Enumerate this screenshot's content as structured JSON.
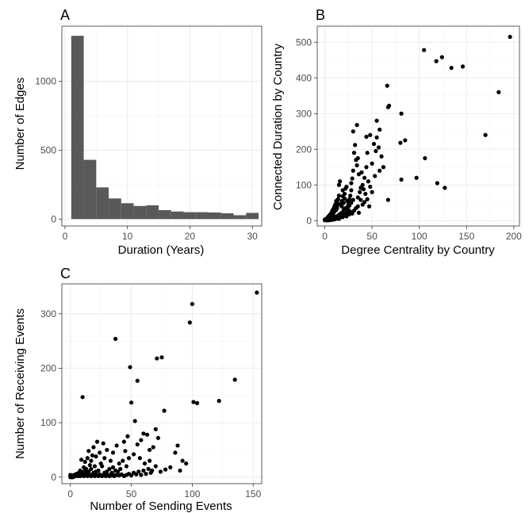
{
  "chart_data": [
    {
      "panel": "A",
      "type": "bar",
      "xlabel": "Duration (Years)",
      "ylabel": "Number of Edges",
      "xlim": [
        -0.5,
        31.5
      ],
      "ylim": [
        -50,
        1400
      ],
      "xticks": [
        0,
        10,
        20,
        30
      ],
      "yticks": [
        0,
        500,
        1000
      ],
      "grid": true,
      "bins": [
        {
          "x0": 1,
          "x1": 3,
          "count": 1330
        },
        {
          "x0": 3,
          "x1": 5,
          "count": 430
        },
        {
          "x0": 5,
          "x1": 7,
          "count": 230
        },
        {
          "x0": 7,
          "x1": 9,
          "count": 150
        },
        {
          "x0": 9,
          "x1": 11,
          "count": 115
        },
        {
          "x0": 11,
          "x1": 13,
          "count": 95
        },
        {
          "x0": 13,
          "x1": 15,
          "count": 100
        },
        {
          "x0": 15,
          "x1": 17,
          "count": 65
        },
        {
          "x0": 17,
          "x1": 19,
          "count": 55
        },
        {
          "x0": 19,
          "x1": 21,
          "count": 50
        },
        {
          "x0": 21,
          "x1": 23,
          "count": 50
        },
        {
          "x0": 23,
          "x1": 25,
          "count": 48
        },
        {
          "x0": 25,
          "x1": 27,
          "count": 42
        },
        {
          "x0": 27,
          "x1": 29,
          "count": 28
        },
        {
          "x0": 29,
          "x1": 31,
          "count": 45
        }
      ]
    },
    {
      "panel": "B",
      "type": "scatter",
      "xlabel": "Degree Centrality by Country",
      "ylabel": "Connected Duration by Country",
      "xlim": [
        -8,
        206
      ],
      "ylim": [
        -15,
        545
      ],
      "xticks": [
        0,
        50,
        100,
        150,
        200
      ],
      "yticks": [
        0,
        100,
        200,
        300,
        400,
        500
      ],
      "grid": true,
      "points": [
        [
          196,
          515
        ],
        [
          105,
          478
        ],
        [
          118,
          447
        ],
        [
          124,
          458
        ],
        [
          134,
          428
        ],
        [
          146,
          432
        ],
        [
          184,
          360
        ],
        [
          66,
          378
        ],
        [
          68,
          322
        ],
        [
          67,
          318
        ],
        [
          81,
          300
        ],
        [
          85,
          225
        ],
        [
          80,
          218
        ],
        [
          170,
          240
        ],
        [
          106,
          175
        ],
        [
          97,
          120
        ],
        [
          81,
          115
        ],
        [
          119,
          105
        ],
        [
          127,
          92
        ],
        [
          67,
          58
        ],
        [
          55,
          280
        ],
        [
          58,
          255
        ],
        [
          55,
          233
        ],
        [
          57,
          205
        ],
        [
          54,
          195
        ],
        [
          60,
          180
        ],
        [
          62,
          150
        ],
        [
          52,
          215
        ],
        [
          48,
          240
        ],
        [
          44,
          235
        ],
        [
          45,
          190
        ],
        [
          44,
          150
        ],
        [
          42,
          120
        ],
        [
          40,
          100
        ],
        [
          38,
          92
        ],
        [
          37,
          80
        ],
        [
          36,
          130
        ],
        [
          34,
          155
        ],
        [
          33,
          170
        ],
        [
          32,
          212
        ],
        [
          34,
          268
        ],
        [
          30,
          250
        ],
        [
          30,
          140
        ],
        [
          29,
          118
        ],
        [
          28,
          105
        ],
        [
          28,
          85
        ],
        [
          27,
          70
        ],
        [
          26,
          60
        ],
        [
          25,
          45
        ],
        [
          24,
          55
        ],
        [
          23,
          95
        ],
        [
          22,
          90
        ],
        [
          21,
          75
        ],
        [
          21,
          62
        ],
        [
          20,
          50
        ],
        [
          19,
          85
        ],
        [
          19,
          68
        ],
        [
          18,
          55
        ],
        [
          18,
          40
        ],
        [
          17,
          45
        ],
        [
          16,
          110
        ],
        [
          15,
          100
        ],
        [
          15,
          70
        ],
        [
          14,
          60
        ],
        [
          14,
          48
        ],
        [
          13,
          40
        ],
        [
          13,
          35
        ],
        [
          12,
          55
        ],
        [
          12,
          30
        ],
        [
          11,
          45
        ],
        [
          11,
          28
        ],
        [
          10,
          38
        ],
        [
          10,
          25
        ],
        [
          9,
          32
        ],
        [
          9,
          20
        ],
        [
          8,
          28
        ],
        [
          8,
          15
        ],
        [
          7,
          22
        ],
        [
          7,
          12
        ],
        [
          6,
          18
        ],
        [
          6,
          10
        ],
        [
          5,
          15
        ],
        [
          5,
          8
        ],
        [
          4,
          12
        ],
        [
          4,
          6
        ],
        [
          3,
          9
        ],
        [
          3,
          5
        ],
        [
          2,
          6
        ],
        [
          2,
          3
        ],
        [
          1,
          4
        ],
        [
          1,
          2
        ],
        [
          0,
          1
        ],
        [
          0,
          3
        ],
        [
          2,
          1
        ],
        [
          3,
          2
        ],
        [
          4,
          3
        ],
        [
          5,
          4
        ],
        [
          6,
          5
        ],
        [
          7,
          6
        ],
        [
          8,
          7
        ],
        [
          9,
          8
        ],
        [
          10,
          9
        ],
        [
          11,
          10
        ],
        [
          12,
          11
        ],
        [
          13,
          12
        ],
        [
          14,
          14
        ],
        [
          15,
          16
        ],
        [
          16,
          18
        ],
        [
          17,
          20
        ],
        [
          18,
          22
        ],
        [
          20,
          30
        ],
        [
          22,
          35
        ],
        [
          24,
          38
        ],
        [
          26,
          42
        ],
        [
          28,
          50
        ],
        [
          30,
          58
        ],
        [
          35,
          65
        ],
        [
          38,
          58
        ],
        [
          40,
          45
        ],
        [
          42,
          52
        ],
        [
          45,
          60
        ],
        [
          47,
          40
        ],
        [
          50,
          80
        ],
        [
          25,
          30
        ],
        [
          27,
          25
        ],
        [
          29,
          20
        ],
        [
          31,
          28
        ],
        [
          33,
          35
        ],
        [
          35,
          40
        ],
        [
          36,
          22
        ],
        [
          20,
          15
        ],
        [
          22,
          20
        ],
        [
          23,
          12
        ],
        [
          24,
          25
        ],
        [
          26,
          18
        ],
        [
          19,
          10
        ],
        [
          17,
          12
        ],
        [
          16,
          8
        ],
        [
          15,
          5
        ],
        [
          13,
          6
        ],
        [
          12,
          8
        ],
        [
          11,
          4
        ],
        [
          10,
          6
        ],
        [
          9,
          3
        ],
        [
          8,
          5
        ],
        [
          7,
          2
        ],
        [
          6,
          4
        ],
        [
          5,
          2
        ],
        [
          4,
          1
        ],
        [
          3,
          1
        ],
        [
          41,
          88
        ],
        [
          43,
          75
        ],
        [
          46,
          110
        ],
        [
          39,
          135
        ],
        [
          31,
          190
        ],
        [
          35,
          175
        ],
        [
          50,
          160
        ],
        [
          53,
          125
        ],
        [
          58,
          140
        ],
        [
          48,
          95
        ]
      ]
    },
    {
      "panel": "C",
      "type": "scatter",
      "xlabel": "Number of Sending Events",
      "ylabel": "Number of Receiving Events",
      "xlim": [
        -7,
        157
      ],
      "ylim": [
        -12,
        355
      ],
      "xticks": [
        0,
        50,
        100,
        150
      ],
      "yticks": [
        0,
        100,
        200,
        300
      ],
      "grid": true,
      "points": [
        [
          153,
          339
        ],
        [
          100,
          318
        ],
        [
          98,
          284
        ],
        [
          37,
          254
        ],
        [
          71,
          218
        ],
        [
          75,
          220
        ],
        [
          49,
          202
        ],
        [
          55,
          177
        ],
        [
          10,
          147
        ],
        [
          135,
          179
        ],
        [
          101,
          138
        ],
        [
          104,
          136
        ],
        [
          122,
          140
        ],
        [
          77,
          122
        ],
        [
          50,
          137
        ],
        [
          53,
          103
        ],
        [
          47,
          75
        ],
        [
          60,
          80
        ],
        [
          63,
          78
        ],
        [
          70,
          88
        ],
        [
          72,
          72
        ],
        [
          88,
          58
        ],
        [
          86,
          45
        ],
        [
          95,
          25
        ],
        [
          68,
          55
        ],
        [
          65,
          50
        ],
        [
          58,
          68
        ],
        [
          55,
          60
        ],
        [
          52,
          42
        ],
        [
          48,
          35
        ],
        [
          45,
          48
        ],
        [
          43,
          30
        ],
        [
          40,
          25
        ],
        [
          38,
          58
        ],
        [
          35,
          45
        ],
        [
          33,
          30
        ],
        [
          30,
          50
        ],
        [
          28,
          35
        ],
        [
          27,
          62
        ],
        [
          25,
          25
        ],
        [
          24,
          45
        ],
        [
          22,
          65
        ],
        [
          21,
          38
        ],
        [
          20,
          20
        ],
        [
          19,
          55
        ],
        [
          18,
          40
        ],
        [
          17,
          30
        ],
        [
          16,
          22
        ],
        [
          15,
          48
        ],
        [
          14,
          35
        ],
        [
          13,
          15
        ],
        [
          12,
          28
        ],
        [
          11,
          18
        ],
        [
          10,
          8
        ],
        [
          9,
          32
        ],
        [
          8,
          12
        ],
        [
          7,
          6
        ],
        [
          6,
          5
        ],
        [
          5,
          3
        ],
        [
          4,
          2
        ],
        [
          3,
          1
        ],
        [
          2,
          0
        ],
        [
          1,
          1
        ],
        [
          0,
          0
        ],
        [
          2,
          2
        ],
        [
          3,
          3
        ],
        [
          4,
          4
        ],
        [
          5,
          5
        ],
        [
          6,
          2
        ],
        [
          7,
          3
        ],
        [
          8,
          2
        ],
        [
          9,
          4
        ],
        [
          10,
          3
        ],
        [
          11,
          2
        ],
        [
          12,
          5
        ],
        [
          13,
          3
        ],
        [
          14,
          2
        ],
        [
          15,
          4
        ],
        [
          16,
          3
        ],
        [
          17,
          2
        ],
        [
          18,
          5
        ],
        [
          19,
          3
        ],
        [
          20,
          2
        ],
        [
          21,
          4
        ],
        [
          22,
          3
        ],
        [
          23,
          2
        ],
        [
          24,
          5
        ],
        [
          25,
          3
        ],
        [
          26,
          2
        ],
        [
          27,
          4
        ],
        [
          28,
          3
        ],
        [
          29,
          2
        ],
        [
          30,
          4
        ],
        [
          31,
          3
        ],
        [
          32,
          2
        ],
        [
          33,
          4
        ],
        [
          34,
          3
        ],
        [
          35,
          5
        ],
        [
          36,
          2
        ],
        [
          38,
          4
        ],
        [
          40,
          3
        ],
        [
          42,
          5
        ],
        [
          44,
          2
        ],
        [
          46,
          4
        ],
        [
          48,
          6
        ],
        [
          50,
          3
        ],
        [
          52,
          8
        ],
        [
          54,
          5
        ],
        [
          56,
          10
        ],
        [
          58,
          4
        ],
        [
          60,
          12
        ],
        [
          62,
          6
        ],
        [
          64,
          15
        ],
        [
          66,
          8
        ],
        [
          70,
          20
        ],
        [
          74,
          10
        ],
        [
          78,
          14
        ],
        [
          82,
          18
        ],
        [
          90,
          12
        ],
        [
          92,
          30
        ],
        [
          35,
          18
        ],
        [
          37,
          12
        ],
        [
          39,
          10
        ],
        [
          41,
          15
        ],
        [
          26,
          20
        ],
        [
          23,
          12
        ],
        [
          21,
          10
        ],
        [
          19,
          8
        ],
        [
          17,
          15
        ],
        [
          15,
          10
        ],
        [
          13,
          8
        ],
        [
          11,
          10
        ],
        [
          9,
          6
        ],
        [
          7,
          8
        ],
        [
          5,
          6
        ],
        [
          3,
          4
        ],
        [
          1,
          3
        ],
        [
          0,
          2
        ],
        [
          1,
          0
        ],
        [
          0,
          4
        ],
        [
          44,
          65
        ],
        [
          46,
          20
        ],
        [
          32,
          15
        ],
        [
          30,
          10
        ],
        [
          28,
          8
        ],
        [
          57,
          35
        ],
        [
          61,
          25
        ],
        [
          65,
          30
        ],
        [
          67,
          12
        ],
        [
          34,
          8
        ]
      ]
    }
  ]
}
